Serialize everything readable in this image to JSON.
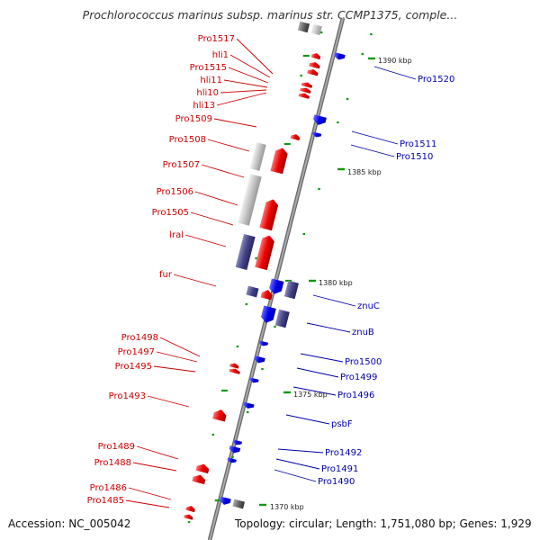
{
  "title": "Prochlorococcus marinus subsp. marinus str. CCMP1375, comple...",
  "footer": {
    "accession": "Accession: NC_005042",
    "topology": "Topology: circular; Length: 1,751,080 bp; Genes: 1,929"
  },
  "colors": {
    "reverse_label": "#cc0000",
    "forward_label": "#0000aa",
    "reverse_gene": "#ee0000",
    "forward_gene": "#0000ee",
    "rna_gene": "#444488",
    "pseudo_gene": "#bbbbbb",
    "tick": "#119911",
    "backbone": "#888888"
  },
  "scale": {
    "unit": "kbp",
    "ticks": [
      {
        "label": "1390 kbp",
        "pos": 1390
      },
      {
        "label": "1385 kbp",
        "pos": 1385
      },
      {
        "label": "1380 kbp",
        "pos": 1380
      },
      {
        "label": "1375 kbp",
        "pos": 1375
      },
      {
        "label": "1370 kbp",
        "pos": 1370
      }
    ]
  },
  "reverse_labels": [
    "Pro1517",
    "hli1",
    "Pro1515",
    "hli11",
    "hli10",
    "hli13",
    "Pro1509",
    "Pro1508",
    "Pro1507",
    "Pro1506",
    "Pro1505",
    "lrаl",
    "fur",
    "Pro1498",
    "Pro1497",
    "Pro1495",
    "Pro1493",
    "Pro1489",
    "Pro1488",
    "Pro1486",
    "Pro1485"
  ],
  "forward_labels": [
    "Pro1520",
    "Pro1511",
    "Pro1510",
    "znuC",
    "znuB",
    "Pro1500",
    "Pro1499",
    "Pro1496",
    "psbF",
    "Pro1492",
    "Pro1491",
    "Pro1490"
  ]
}
